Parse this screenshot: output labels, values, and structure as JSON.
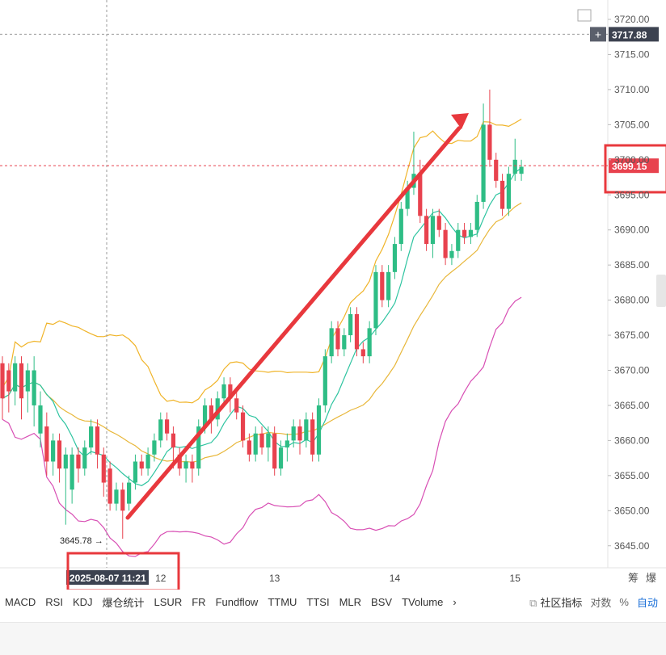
{
  "chart_data": {
    "type": "candlestick",
    "x_ticks": [
      "12",
      "13",
      "14",
      "15"
    ],
    "y_ticks": [
      "3720.00",
      "3715.00",
      "3710.00",
      "3705.00",
      "3700.00",
      "3695.00",
      "3690.00",
      "3685.00",
      "3680.00",
      "3675.00",
      "3670.00",
      "3665.00",
      "3660.00",
      "3655.00",
      "3650.00",
      "3645.00"
    ],
    "ylim": [
      3642.5,
      3722.5
    ],
    "crosshair_price": "3717.88",
    "crosshair_time": "2025-08-07 11:21",
    "current_price": "3699.15",
    "low_label": "3645.78",
    "candles": [
      [
        3671,
        3666,
        3672,
        3663
      ],
      [
        3670,
        3667,
        3671,
        3664
      ],
      [
        3667,
        3671,
        3672,
        3665
      ],
      [
        3671,
        3666,
        3672,
        3663
      ],
      [
        3667,
        3670,
        3671,
        3664
      ],
      [
        3665,
        3670,
        3672,
        3662
      ],
      [
        3661,
        3665,
        3667,
        3659
      ],
      [
        3662,
        3657,
        3664,
        3655
      ],
      [
        3657,
        3660,
        3661,
        3655
      ],
      [
        3660,
        3656,
        3661,
        3654
      ],
      [
        3656,
        3658,
        3659,
        3648
      ],
      [
        3653,
        3658,
        3659,
        3651
      ],
      [
        3658,
        3656,
        3659,
        3654
      ],
      [
        3656,
        3659,
        3660,
        3655
      ],
      [
        3659,
        3662,
        3663,
        3658
      ],
      [
        3662,
        3658,
        3663,
        3656
      ],
      [
        3658,
        3654,
        3659,
        3652
      ],
      [
        3656,
        3651,
        3657,
        3650
      ],
      [
        3651,
        3653,
        3654,
        3650
      ],
      [
        3653,
        3650,
        3654,
        3646
      ],
      [
        3651,
        3654,
        3655,
        3650
      ],
      [
        3654,
        3657,
        3658,
        3653
      ],
      [
        3657,
        3656,
        3658,
        3655
      ],
      [
        3656,
        3658,
        3659,
        3655
      ],
      [
        3658,
        3660,
        3661,
        3657
      ],
      [
        3660,
        3663,
        3664,
        3659
      ],
      [
        3663,
        3661,
        3664,
        3660
      ],
      [
        3661,
        3659,
        3662,
        3656
      ],
      [
        3658,
        3656,
        3659,
        3655
      ],
      [
        3656,
        3657,
        3658,
        3654
      ],
      [
        3657,
        3656,
        3658,
        3654
      ],
      [
        3656,
        3662,
        3663,
        3655
      ],
      [
        3662,
        3665,
        3666,
        3661
      ],
      [
        3665,
        3663,
        3666,
        3661
      ],
      [
        3663,
        3666,
        3667,
        3662
      ],
      [
        3666,
        3668,
        3669,
        3665
      ],
      [
        3668,
        3666,
        3669,
        3664
      ],
      [
        3666,
        3664,
        3667,
        3663
      ],
      [
        3664,
        3660,
        3665,
        3659
      ],
      [
        3660,
        3658,
        3661,
        3657
      ],
      [
        3658,
        3661,
        3662,
        3657
      ],
      [
        3661,
        3659,
        3662,
        3658
      ],
      [
        3659,
        3661,
        3662,
        3657
      ],
      [
        3661,
        3656,
        3662,
        3655
      ],
      [
        3656,
        3659,
        3660,
        3655
      ],
      [
        3659,
        3660,
        3661,
        3657
      ],
      [
        3660,
        3662,
        3663,
        3659
      ],
      [
        3662,
        3660,
        3663,
        3658
      ],
      [
        3660,
        3663,
        3664,
        3659
      ],
      [
        3663,
        3658,
        3664,
        3657
      ],
      [
        3658,
        3665,
        3666,
        3657
      ],
      [
        3665,
        3672,
        3673,
        3664
      ],
      [
        3672,
        3676,
        3677,
        3671
      ],
      [
        3676,
        3673,
        3677,
        3672
      ],
      [
        3673,
        3675,
        3676,
        3672
      ],
      [
        3675,
        3678,
        3679,
        3674
      ],
      [
        3678,
        3673,
        3679,
        3672
      ],
      [
        3673,
        3672,
        3674,
        3671
      ],
      [
        3672,
        3676,
        3677,
        3671
      ],
      [
        3676,
        3684,
        3685,
        3675
      ],
      [
        3684,
        3680,
        3685,
        3679
      ],
      [
        3680,
        3684,
        3685,
        3679
      ],
      [
        3684,
        3688,
        3689,
        3683
      ],
      [
        3688,
        3693,
        3694,
        3687
      ],
      [
        3693,
        3696,
        3697,
        3692
      ],
      [
        3696,
        3698,
        3704,
        3695
      ],
      [
        3698,
        3692,
        3700,
        3691
      ],
      [
        3692,
        3688,
        3693,
        3687
      ],
      [
        3688,
        3692,
        3693,
        3686
      ],
      [
        3692,
        3690,
        3693,
        3689
      ],
      [
        3690,
        3686,
        3691,
        3685
      ],
      [
        3686,
        3687,
        3688,
        3685
      ],
      [
        3687,
        3690,
        3691,
        3686
      ],
      [
        3690,
        3689,
        3691,
        3688
      ],
      [
        3689,
        3690,
        3691,
        3688
      ],
      [
        3690,
        3694,
        3695,
        3689
      ],
      [
        3694,
        3705,
        3708,
        3693
      ],
      [
        3705,
        3700,
        3710,
        3699
      ],
      [
        3700,
        3697,
        3701,
        3696
      ],
      [
        3697,
        3693,
        3698,
        3692
      ],
      [
        3693,
        3698,
        3699,
        3692
      ],
      [
        3698,
        3700,
        3703,
        3697
      ],
      [
        3698,
        3699,
        3700,
        3697
      ]
    ],
    "x_tick_candle_index": [
      25,
      43,
      62,
      81
    ]
  },
  "indicators": [
    "MACD",
    "RSI",
    "KDJ",
    "爆仓统计",
    "LSUR",
    "FR",
    "Fundflow",
    "TTMU",
    "TTSI",
    "MLR",
    "BSV",
    "TVolume"
  ],
  "right_controls": {
    "community": "社区指标",
    "log": "对数",
    "percent": "%",
    "auto": "自动"
  },
  "top_right_labels": [
    "筹",
    "爆"
  ]
}
